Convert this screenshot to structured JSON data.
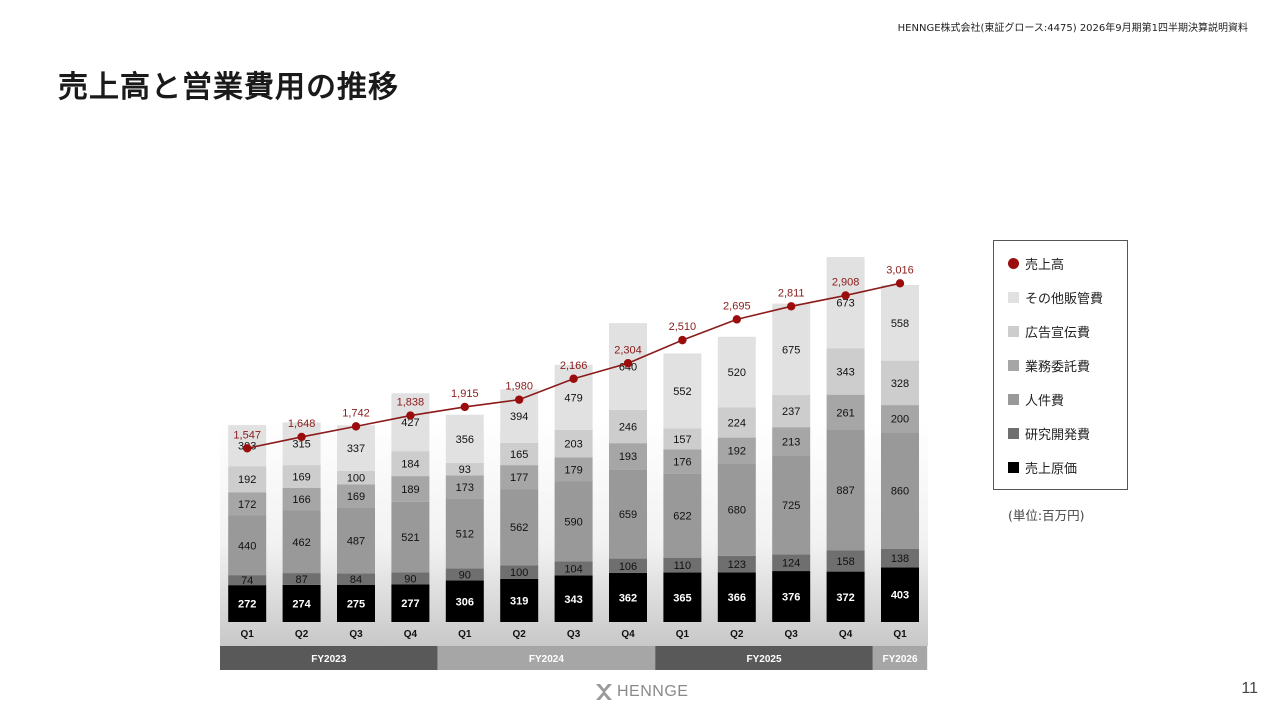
{
  "header": {
    "note": "HENNGE株式会社(東証グロース:4475) 2026年9月期第1四半期決算説明資料",
    "title": "売上高と営業費用の推移"
  },
  "footer": {
    "logo_text": "HENNGE",
    "page_number": "11"
  },
  "unit_note": "(単位:百万円)",
  "colors": {
    "revenue_line": "#8b1a1a",
    "cogs": "#000000",
    "rnd": "#6f6f6f",
    "personnel": "#999999",
    "outsourcing": "#a6a6a6",
    "advertising": "#cdcdcd",
    "other_sga": "#e1e1e1",
    "fy_band_dark": "#595959",
    "fy_band_light": "#a6a6a6"
  },
  "legend": [
    {
      "key": "revenue",
      "label": "売上高",
      "marker": "dot",
      "color": "#9b0d0d"
    },
    {
      "key": "other_sga",
      "label": "その他販管費",
      "marker": "square",
      "color": "#e1e1e1"
    },
    {
      "key": "advertising",
      "label": "広告宣伝費",
      "marker": "square",
      "color": "#cdcdcd"
    },
    {
      "key": "outsourcing",
      "label": "業務委託費",
      "marker": "square",
      "color": "#a6a6a6"
    },
    {
      "key": "personnel",
      "label": "人件費",
      "marker": "square",
      "color": "#999999"
    },
    {
      "key": "rnd",
      "label": "研究開発費",
      "marker": "square",
      "color": "#6f6f6f"
    },
    {
      "key": "cogs",
      "label": "売上原価",
      "marker": "square",
      "color": "#000000"
    }
  ],
  "chart_data": {
    "type": "bar",
    "stacked": true,
    "title": "売上高と営業費用の推移",
    "unit": "百万円",
    "categories": [
      "Q1",
      "Q2",
      "Q3",
      "Q4",
      "Q1",
      "Q2",
      "Q3",
      "Q4",
      "Q1",
      "Q2",
      "Q3",
      "Q4",
      "Q1"
    ],
    "fiscal_years": [
      {
        "label": "FY2023",
        "count": 4,
        "shade": "dark"
      },
      {
        "label": "FY2024",
        "count": 4,
        "shade": "light"
      },
      {
        "label": "FY2025",
        "count": 4,
        "shade": "dark"
      },
      {
        "label": "FY2026",
        "count": 1,
        "shade": "light"
      }
    ],
    "series": [
      {
        "name": "売上原価",
        "key": "cogs",
        "values": [
          272,
          274,
          275,
          277,
          306,
          319,
          343,
          362,
          365,
          366,
          376,
          372,
          403
        ]
      },
      {
        "name": "研究開発費",
        "key": "rnd",
        "values": [
          74,
          87,
          84,
          90,
          90,
          100,
          104,
          106,
          110,
          123,
          124,
          158,
          138
        ]
      },
      {
        "name": "人件費",
        "key": "personnel",
        "values": [
          440,
          462,
          487,
          521,
          512,
          562,
          590,
          659,
          622,
          680,
          725,
          887,
          860
        ]
      },
      {
        "name": "業務委託費",
        "key": "outsourcing",
        "values": [
          172,
          166,
          169,
          189,
          173,
          177,
          179,
          193,
          176,
          192,
          213,
          261,
          200
        ]
      },
      {
        "name": "広告宣伝費",
        "key": "advertising",
        "values": [
          192,
          169,
          100,
          184,
          93,
          165,
          203,
          246,
          157,
          224,
          237,
          343,
          328
        ]
      },
      {
        "name": "その他販管費",
        "key": "other_sga",
        "values": [
          303,
          315,
          337,
          427,
          356,
          394,
          479,
          640,
          552,
          520,
          675,
          673,
          558
        ]
      }
    ],
    "line_series": {
      "name": "売上高",
      "key": "revenue",
      "values": [
        1547,
        1648,
        1742,
        1838,
        1915,
        1980,
        2166,
        2304,
        2510,
        2695,
        2811,
        2908,
        3016
      ],
      "labels": [
        "1,547",
        "1,648",
        "1,742",
        "1,838",
        "1,915",
        "1,980",
        "2,166",
        "2,304",
        "2,510",
        "2,695",
        "2,811",
        "2,908",
        "3,016"
      ]
    }
  }
}
